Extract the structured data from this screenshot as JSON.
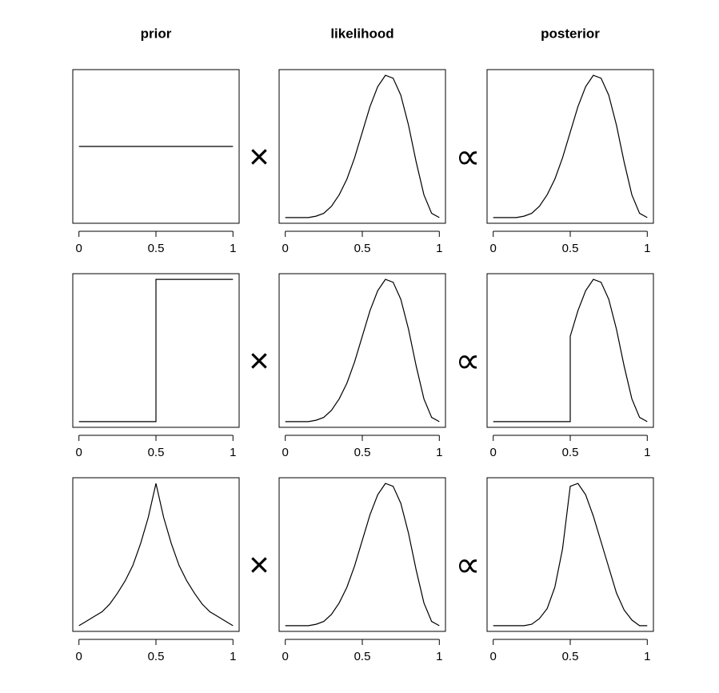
{
  "columns": [
    "prior",
    "likelihood",
    "posterior"
  ],
  "operators": [
    "×",
    "∝"
  ],
  "chart_data": [
    {
      "type": "line",
      "x": [
        0,
        1
      ],
      "values": [
        1,
        1
      ],
      "xlim": [
        0,
        1
      ],
      "xticks": [
        0,
        0.5,
        1
      ],
      "ylim": [
        0,
        2
      ]
    },
    {
      "type": "line",
      "x": [
        0,
        0.05,
        0.1,
        0.15,
        0.2,
        0.25,
        0.3,
        0.35,
        0.4,
        0.45,
        0.5,
        0.55,
        0.6,
        0.65,
        0.7,
        0.75,
        0.8,
        0.85,
        0.9,
        0.95,
        1
      ],
      "values": [
        0,
        0,
        0,
        0,
        0.01,
        0.03,
        0.08,
        0.16,
        0.27,
        0.42,
        0.6,
        0.78,
        0.92,
        1,
        0.98,
        0.86,
        0.65,
        0.39,
        0.16,
        0.03,
        0
      ],
      "xlim": [
        0,
        1
      ],
      "xticks": [
        0,
        0.5,
        1
      ],
      "ylim": [
        0,
        1
      ]
    },
    {
      "type": "line",
      "x": [
        0,
        0.05,
        0.1,
        0.15,
        0.2,
        0.25,
        0.3,
        0.35,
        0.4,
        0.45,
        0.5,
        0.55,
        0.6,
        0.65,
        0.7,
        0.75,
        0.8,
        0.85,
        0.9,
        0.95,
        1
      ],
      "values": [
        0,
        0,
        0,
        0,
        0.01,
        0.03,
        0.08,
        0.16,
        0.27,
        0.42,
        0.6,
        0.78,
        0.92,
        1,
        0.98,
        0.86,
        0.65,
        0.39,
        0.16,
        0.03,
        0
      ],
      "xlim": [
        0,
        1
      ],
      "xticks": [
        0,
        0.5,
        1
      ],
      "ylim": [
        0,
        1
      ]
    },
    {
      "type": "line",
      "x": [
        0,
        0.5,
        0.5,
        1
      ],
      "values": [
        0,
        0,
        1,
        1
      ],
      "xlim": [
        0,
        1
      ],
      "xticks": [
        0,
        0.5,
        1
      ],
      "ylim": [
        0,
        1
      ]
    },
    {
      "type": "line",
      "x": [
        0,
        0.05,
        0.1,
        0.15,
        0.2,
        0.25,
        0.3,
        0.35,
        0.4,
        0.45,
        0.5,
        0.55,
        0.6,
        0.65,
        0.7,
        0.75,
        0.8,
        0.85,
        0.9,
        0.95,
        1
      ],
      "values": [
        0,
        0,
        0,
        0,
        0.01,
        0.03,
        0.08,
        0.16,
        0.27,
        0.42,
        0.6,
        0.78,
        0.92,
        1,
        0.98,
        0.86,
        0.65,
        0.39,
        0.16,
        0.03,
        0
      ],
      "xlim": [
        0,
        1
      ],
      "xticks": [
        0,
        0.5,
        1
      ],
      "ylim": [
        0,
        1
      ]
    },
    {
      "type": "line",
      "x": [
        0,
        0.05,
        0.1,
        0.15,
        0.2,
        0.25,
        0.3,
        0.35,
        0.4,
        0.45,
        0.5,
        0.5,
        0.55,
        0.6,
        0.65,
        0.7,
        0.75,
        0.8,
        0.85,
        0.9,
        0.95,
        1
      ],
      "values": [
        0,
        0,
        0,
        0,
        0,
        0,
        0,
        0,
        0,
        0,
        0,
        0.6,
        0.78,
        0.92,
        1,
        0.98,
        0.86,
        0.65,
        0.39,
        0.16,
        0.03,
        0
      ],
      "xlim": [
        0,
        1
      ],
      "xticks": [
        0,
        0.5,
        1
      ],
      "ylim": [
        0,
        1
      ]
    },
    {
      "type": "line",
      "x": [
        0,
        0.05,
        0.1,
        0.15,
        0.2,
        0.25,
        0.3,
        0.35,
        0.4,
        0.45,
        0.5,
        0.55,
        0.6,
        0.65,
        0.7,
        0.75,
        0.8,
        0.85,
        0.9,
        0.95,
        1
      ],
      "values": [
        0.08,
        0.11,
        0.14,
        0.17,
        0.22,
        0.29,
        0.37,
        0.47,
        0.61,
        0.78,
        1,
        0.78,
        0.61,
        0.47,
        0.37,
        0.29,
        0.22,
        0.17,
        0.14,
        0.11,
        0.08
      ],
      "xlim": [
        0,
        1
      ],
      "xticks": [
        0,
        0.5,
        1
      ],
      "ylim": [
        0.08,
        1
      ]
    },
    {
      "type": "line",
      "x": [
        0,
        0.05,
        0.1,
        0.15,
        0.2,
        0.25,
        0.3,
        0.35,
        0.4,
        0.45,
        0.5,
        0.55,
        0.6,
        0.65,
        0.7,
        0.75,
        0.8,
        0.85,
        0.9,
        0.95,
        1
      ],
      "values": [
        0,
        0,
        0,
        0,
        0.01,
        0.03,
        0.08,
        0.16,
        0.27,
        0.42,
        0.6,
        0.78,
        0.92,
        1,
        0.98,
        0.86,
        0.65,
        0.39,
        0.16,
        0.03,
        0
      ],
      "xlim": [
        0,
        1
      ],
      "xticks": [
        0,
        0.5,
        1
      ],
      "ylim": [
        0,
        1
      ]
    },
    {
      "type": "line",
      "x": [
        0,
        0.05,
        0.1,
        0.15,
        0.2,
        0.25,
        0.3,
        0.35,
        0.4,
        0.45,
        0.5,
        0.55,
        0.6,
        0.65,
        0.7,
        0.75,
        0.8,
        0.85,
        0.9,
        0.95,
        1
      ],
      "values": [
        0,
        0,
        0,
        0,
        0,
        0.01,
        0.05,
        0.12,
        0.27,
        0.54,
        0.98,
        1,
        0.92,
        0.77,
        0.59,
        0.41,
        0.23,
        0.11,
        0.04,
        0,
        0
      ],
      "xlim": [
        0,
        1
      ],
      "xticks": [
        0,
        0.5,
        1
      ],
      "ylim": [
        0,
        1
      ]
    }
  ]
}
